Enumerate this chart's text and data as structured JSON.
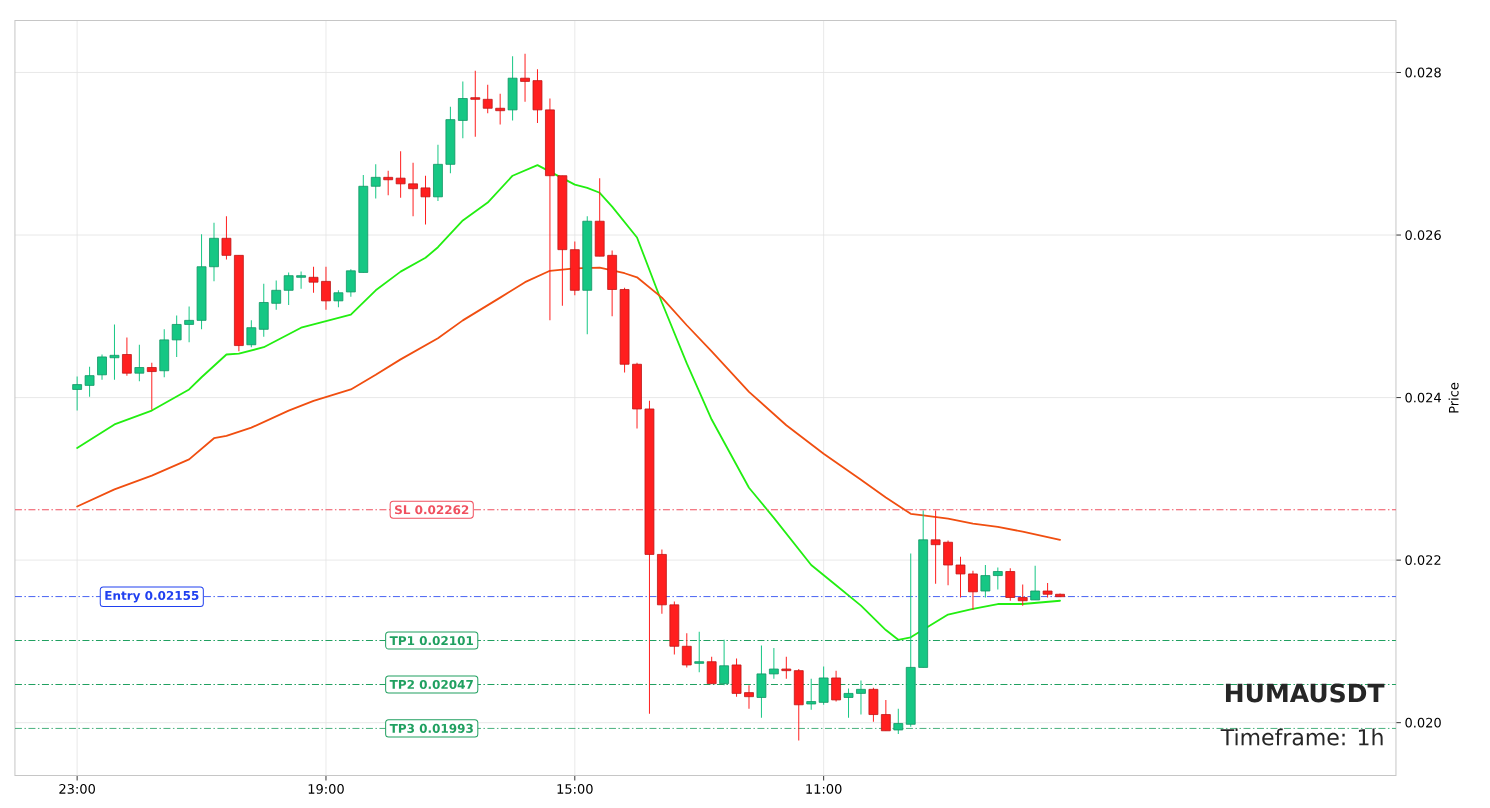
{
  "chart_data": {
    "type": "candlestick",
    "ylabel": "Price",
    "categories": [
      "23:00",
      null,
      null,
      null,
      null,
      null,
      null,
      null,
      null,
      null,
      null,
      null,
      null,
      null,
      null,
      null,
      null,
      null,
      null,
      null,
      "19:00",
      null,
      null,
      null,
      null,
      null,
      null,
      null,
      null,
      null,
      null,
      null,
      null,
      null,
      null,
      null,
      null,
      null,
      null,
      null,
      "15:00",
      null,
      null,
      null,
      null,
      null,
      null,
      null,
      null,
      null,
      null,
      null,
      null,
      null,
      null,
      null,
      null,
      null,
      null,
      null,
      "11:00",
      null,
      null,
      null,
      null,
      null,
      null,
      null,
      null,
      null,
      null,
      null,
      null,
      null,
      null,
      null,
      null,
      null,
      null,
      null
    ],
    "ohlc": [
      [
        0.0241,
        0.02426,
        0.02384,
        0.02416
      ],
      [
        0.02415,
        0.02438,
        0.02401,
        0.02427
      ],
      [
        0.02428,
        0.02453,
        0.02422,
        0.0245
      ],
      [
        0.02449,
        0.0249,
        0.02422,
        0.02452
      ],
      [
        0.02453,
        0.02474,
        0.02427,
        0.0243
      ],
      [
        0.0243,
        0.02465,
        0.0242,
        0.02437
      ],
      [
        0.02437,
        0.02443,
        0.02385,
        0.02432
      ],
      [
        0.02433,
        0.02484,
        0.02425,
        0.02471
      ],
      [
        0.02471,
        0.02501,
        0.0245,
        0.0249
      ],
      [
        0.0249,
        0.02512,
        0.02468,
        0.02495
      ],
      [
        0.02495,
        0.02601,
        0.02484,
        0.02561
      ],
      [
        0.02561,
        0.02615,
        0.02543,
        0.02596
      ],
      [
        0.02596,
        0.02623,
        0.0257,
        0.02575
      ],
      [
        0.02575,
        0.02575,
        0.02457,
        0.02464
      ],
      [
        0.02465,
        0.02495,
        0.02462,
        0.02486
      ],
      [
        0.02484,
        0.0254,
        0.02475,
        0.02517
      ],
      [
        0.02516,
        0.02544,
        0.02508,
        0.02532
      ],
      [
        0.02532,
        0.02554,
        0.02514,
        0.0255
      ],
      [
        0.02548,
        0.02555,
        0.02534,
        0.0255
      ],
      [
        0.02548,
        0.02561,
        0.02529,
        0.02542
      ],
      [
        0.02543,
        0.02561,
        0.02508,
        0.02519
      ],
      [
        0.02519,
        0.02532,
        0.02511,
        0.02529
      ],
      [
        0.0253,
        0.02558,
        0.02524,
        0.02556
      ],
      [
        0.02554,
        0.02674,
        0.02554,
        0.0266
      ],
      [
        0.0266,
        0.02687,
        0.02645,
        0.02671
      ],
      [
        0.02671,
        0.02679,
        0.02649,
        0.02668
      ],
      [
        0.0267,
        0.02703,
        0.02646,
        0.02663
      ],
      [
        0.02663,
        0.02689,
        0.02623,
        0.02657
      ],
      [
        0.02658,
        0.02673,
        0.02613,
        0.02647
      ],
      [
        0.02647,
        0.02711,
        0.02642,
        0.02687
      ],
      [
        0.02687,
        0.02758,
        0.02676,
        0.02742
      ],
      [
        0.02741,
        0.02789,
        0.02719,
        0.02768
      ],
      [
        0.02769,
        0.02802,
        0.02721,
        0.02767
      ],
      [
        0.02767,
        0.02785,
        0.0275,
        0.02756
      ],
      [
        0.02756,
        0.02774,
        0.02736,
        0.02753
      ],
      [
        0.02754,
        0.0282,
        0.02741,
        0.02793
      ],
      [
        0.02793,
        0.02823,
        0.02764,
        0.02789
      ],
      [
        0.0279,
        0.02804,
        0.02738,
        0.02754
      ],
      [
        0.02754,
        0.02768,
        0.02495,
        0.02673
      ],
      [
        0.02673,
        0.02673,
        0.02513,
        0.02582
      ],
      [
        0.02582,
        0.02592,
        0.02526,
        0.02532
      ],
      [
        0.02532,
        0.02623,
        0.02478,
        0.02617
      ],
      [
        0.02617,
        0.0267,
        0.02574,
        0.02574
      ],
      [
        0.02575,
        0.02581,
        0.025,
        0.02533
      ],
      [
        0.02533,
        0.02535,
        0.02431,
        0.02441
      ],
      [
        0.02441,
        0.02443,
        0.02362,
        0.02386
      ],
      [
        0.02386,
        0.02396,
        0.02011,
        0.02207
      ],
      [
        0.02207,
        0.02213,
        0.02134,
        0.02145
      ],
      [
        0.02145,
        0.02149,
        0.02084,
        0.02094
      ],
      [
        0.02094,
        0.0211,
        0.02068,
        0.02071
      ],
      [
        0.02073,
        0.02112,
        0.02062,
        0.02075
      ],
      [
        0.02075,
        0.02081,
        0.02048,
        0.02048
      ],
      [
        0.02048,
        0.02102,
        0.02046,
        0.0207
      ],
      [
        0.02071,
        0.02079,
        0.02032,
        0.02036
      ],
      [
        0.02037,
        0.02046,
        0.02017,
        0.02032
      ],
      [
        0.02031,
        0.02095,
        0.02006,
        0.0206
      ],
      [
        0.0206,
        0.02092,
        0.02054,
        0.02066
      ],
      [
        0.02066,
        0.02081,
        0.02054,
        0.02064
      ],
      [
        0.02064,
        0.02066,
        0.01978,
        0.02022
      ],
      [
        0.02023,
        0.02054,
        0.02016,
        0.02026
      ],
      [
        0.02025,
        0.02069,
        0.02022,
        0.02055
      ],
      [
        0.02055,
        0.02064,
        0.02026,
        0.02028
      ],
      [
        0.02031,
        0.02042,
        0.02006,
        0.02036
      ],
      [
        0.02036,
        0.02052,
        0.0201,
        0.02041
      ],
      [
        0.02041,
        0.02043,
        0.02001,
        0.0201
      ],
      [
        0.0201,
        0.02028,
        0.0199,
        0.0199
      ],
      [
        0.01991,
        0.02017,
        0.01986,
        0.01999
      ],
      [
        0.01998,
        0.02208,
        0.01995,
        0.02068
      ],
      [
        0.02068,
        0.02261,
        0.02068,
        0.02225
      ],
      [
        0.02225,
        0.02261,
        0.02171,
        0.02219
      ],
      [
        0.02222,
        0.02224,
        0.02169,
        0.02194
      ],
      [
        0.02194,
        0.02204,
        0.02154,
        0.02183
      ],
      [
        0.02183,
        0.02187,
        0.02139,
        0.02161
      ],
      [
        0.02162,
        0.02194,
        0.02154,
        0.02181
      ],
      [
        0.02181,
        0.02191,
        0.02164,
        0.02186
      ],
      [
        0.02186,
        0.0219,
        0.0215,
        0.02154
      ],
      [
        0.02154,
        0.0217,
        0.02144,
        0.0215
      ],
      [
        0.02151,
        0.02193,
        0.02151,
        0.02162
      ],
      [
        0.02162,
        0.02172,
        0.02154,
        0.02158
      ],
      [
        0.02158,
        0.02159,
        0.02155,
        0.02155
      ]
    ],
    "colors": [
      "#16c784",
      "#16c784",
      "#16c784",
      "#16c784",
      "#ff1f1f",
      "#16c784",
      "#ff1f1f",
      "#16c784",
      "#16c784",
      "#16c784",
      "#16c784",
      "#16c784",
      "#ff1f1f",
      "#ff1f1f",
      "#16c784",
      "#16c784",
      "#16c784",
      "#16c784",
      "#16c784",
      "#ff1f1f",
      "#ff1f1f",
      "#16c784",
      "#16c784",
      "#16c784",
      "#16c784",
      "#ff1f1f",
      "#ff1f1f",
      "#ff1f1f",
      "#ff1f1f",
      "#16c784",
      "#16c784",
      "#16c784",
      "#ff1f1f",
      "#ff1f1f",
      "#ff1f1f",
      "#16c784",
      "#ff1f1f",
      "#ff1f1f",
      "#ff1f1f",
      "#ff1f1f",
      "#ff1f1f",
      "#16c784",
      "#ff1f1f",
      "#ff1f1f",
      "#ff1f1f",
      "#ff1f1f",
      "#ff1f1f",
      "#ff1f1f",
      "#ff1f1f",
      "#ff1f1f",
      "#16c784",
      "#ff1f1f",
      "#16c784",
      "#ff1f1f",
      "#ff1f1f",
      "#16c784",
      "#16c784",
      "#ff1f1f",
      "#ff1f1f",
      "#16c784",
      "#16c784",
      "#ff1f1f",
      "#16c784",
      "#16c784",
      "#ff1f1f",
      "#ff1f1f",
      "#16c784",
      "#16c784",
      "#16c784",
      "#ff1f1f",
      "#ff1f1f",
      "#ff1f1f",
      "#ff1f1f",
      "#16c784",
      "#16c784",
      "#ff1f1f",
      "#ff1f1f",
      "#16c784",
      "#ff1f1f",
      "#ff1f1f"
    ],
    "series": [
      {
        "type": "line",
        "color": "#22ee11",
        "values": [
          0.02338,
          null,
          null,
          0.02367,
          null,
          null,
          0.02384,
          null,
          null,
          0.0241,
          0.02425,
          null,
          0.02453,
          0.02454,
          null,
          0.02462,
          null,
          null,
          0.02486,
          0.0249,
          null,
          null,
          0.02502,
          null,
          0.02532,
          null,
          0.02555,
          null,
          0.02572,
          0.02585,
          null,
          0.02618,
          null,
          0.0264,
          null,
          0.02673,
          null,
          0.02686,
          null,
          null,
          0.02662,
          0.02658,
          0.02652,
          0.02635,
          null,
          0.02597,
          null,
          0.02517,
          null,
          0.02442,
          null,
          0.02373,
          null,
          null,
          0.02289,
          null,
          0.02252,
          null,
          null,
          0.02194,
          null,
          0.02169,
          null,
          0.02144,
          null,
          0.02114,
          0.02102,
          0.02105,
          null,
          null,
          0.02133,
          null,
          0.0214,
          null,
          0.02146,
          null,
          0.02146,
          null,
          null,
          0.0215
        ]
      },
      {
        "type": "line",
        "color": "#f04e10",
        "values": [
          0.02266,
          null,
          null,
          0.02287,
          null,
          null,
          0.02304,
          null,
          null,
          0.02324,
          null,
          0.0235,
          0.02353,
          null,
          0.02363,
          null,
          null,
          0.02384,
          null,
          0.02396,
          null,
          null,
          0.0241,
          null,
          0.02428,
          null,
          0.02447,
          null,
          null,
          0.02473,
          null,
          0.02495,
          null,
          null,
          0.02523,
          null,
          0.02542,
          null,
          0.02556,
          null,
          0.02559,
          null,
          0.0256,
          null,
          0.02553,
          0.02548,
          null,
          0.02523,
          null,
          0.02489,
          null,
          0.02457,
          null,
          null,
          0.02407,
          null,
          null,
          0.02366,
          null,
          null,
          0.02331,
          null,
          null,
          0.02299,
          null,
          0.02277,
          null,
          0.02257,
          0.02255,
          null,
          0.02251,
          null,
          0.02245,
          null,
          0.02241,
          null,
          0.02235,
          null,
          null,
          0.02225
        ]
      }
    ],
    "ylim": [
      0.01935,
      0.02864
    ],
    "yticks": [
      {
        "value": 0.02,
        "label": "0.020"
      },
      {
        "value": 0.022,
        "label": "0.022"
      },
      {
        "value": 0.024,
        "label": "0.024"
      },
      {
        "value": 0.026,
        "label": "0.026"
      },
      {
        "value": 0.028,
        "label": "0.028"
      }
    ],
    "grid": true,
    "ref_lines": [
      {
        "axis": "y",
        "value": 0.02262,
        "label": "SL 0.02262",
        "color": "#f0505f",
        "line_style": "dashdot"
      },
      {
        "axis": "y",
        "value": 0.02155,
        "label": "Entry 0.02155",
        "color": "#2040f0",
        "line_style": "dashdot"
      },
      {
        "axis": "y",
        "value": 0.02101,
        "label": "TP1 0.02101",
        "color": "#20a060",
        "line_style": "dashdot"
      },
      {
        "axis": "y",
        "value": 0.02047,
        "label": "TP2 0.02047",
        "color": "#20a060",
        "line_style": "dashdot"
      },
      {
        "axis": "y",
        "value": 0.01993,
        "label": "TP3 0.01993",
        "color": "#20a060",
        "line_style": "dashdot"
      }
    ],
    "annotations": [
      "**HUMAUSDT**",
      "Timeframe: 1h"
    ]
  }
}
